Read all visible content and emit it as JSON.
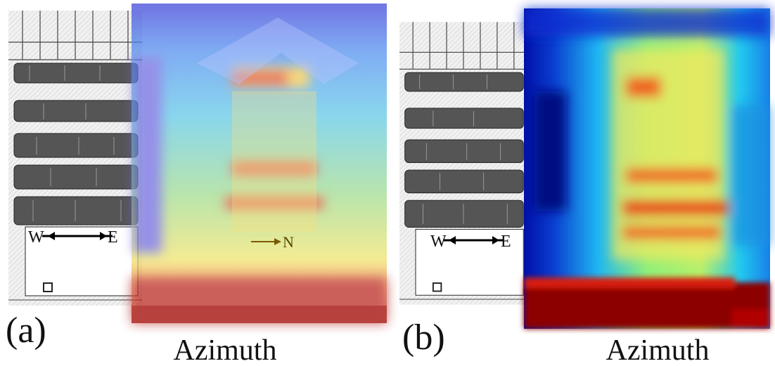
{
  "panels": [
    {
      "label": "(a)",
      "axis_label": "Azimuth",
      "annotations": [
        "W",
        "E",
        "N"
      ]
    },
    {
      "label": "(b)",
      "axis_label": "Azimuth",
      "annotations": [
        "W",
        "E"
      ]
    }
  ]
}
